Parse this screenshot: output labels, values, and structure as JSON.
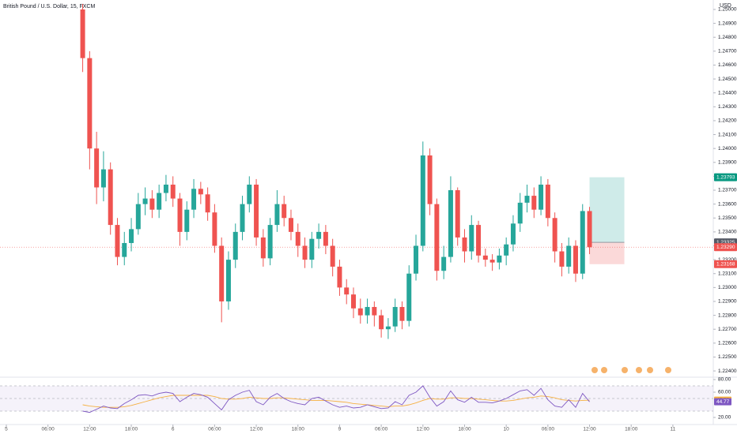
{
  "chart_data": {
    "type": "candlestick",
    "title": "British Pound / U.S. Dollar, 15, FXCM",
    "currency": "USD",
    "up_color": "#26a69a",
    "down_color": "#ef5350",
    "x": [
      11,
      12,
      13,
      14,
      15,
      16,
      17,
      18,
      19,
      20,
      21,
      22,
      23,
      24,
      25,
      26,
      27,
      28,
      29,
      30,
      31,
      32,
      33,
      34,
      35,
      36,
      37,
      38,
      39,
      40,
      41,
      42,
      43,
      44,
      45,
      46,
      47,
      48,
      49,
      50,
      51,
      52,
      53,
      54,
      55,
      56,
      57,
      58,
      59,
      60,
      61,
      62,
      63,
      64,
      65,
      66,
      67,
      68,
      69,
      70,
      71,
      72,
      73,
      74,
      75,
      76,
      77,
      78,
      79,
      80,
      81,
      82,
      83,
      84
    ],
    "open": [
      1.25,
      1.2465,
      1.24,
      1.2372,
      1.2385,
      1.2345,
      1.2322,
      1.2332,
      1.2342,
      1.236,
      1.2364,
      1.2356,
      1.2368,
      1.2374,
      1.2364,
      1.234,
      1.2356,
      1.2371,
      1.2367,
      1.2354,
      1.233,
      1.229,
      1.232,
      1.234,
      1.236,
      1.2374,
      1.2336,
      1.2321,
      1.2345,
      1.236,
      1.235,
      1.234,
      1.233,
      1.232,
      1.2335,
      1.234,
      1.233,
      1.2315,
      1.23,
      1.2295,
      1.2285,
      1.228,
      1.2286,
      1.228,
      1.227,
      1.2272,
      1.2286,
      1.2276,
      1.231,
      1.233,
      1.2395,
      1.236,
      1.2312,
      1.2322,
      1.237,
      1.2336,
      1.2326,
      1.2345,
      1.2323,
      1.232,
      1.2318,
      1.2323,
      1.2331,
      1.2346,
      1.2361,
      1.2366,
      1.2356,
      1.2374,
      1.235,
      1.2326,
      1.2315,
      1.233,
      1.231,
      1.2355
    ],
    "close": [
      1.2465,
      1.24,
      1.2372,
      1.2385,
      1.2345,
      1.2322,
      1.2332,
      1.2342,
      1.236,
      1.2364,
      1.2356,
      1.2368,
      1.2374,
      1.2364,
      1.234,
      1.2356,
      1.2371,
      1.2367,
      1.2354,
      1.233,
      1.229,
      1.232,
      1.234,
      1.236,
      1.2374,
      1.2336,
      1.2321,
      1.2345,
      1.236,
      1.235,
      1.234,
      1.233,
      1.232,
      1.2335,
      1.234,
      1.233,
      1.2315,
      1.23,
      1.2295,
      1.2285,
      1.228,
      1.2286,
      1.228,
      1.227,
      1.2272,
      1.2286,
      1.2276,
      1.231,
      1.233,
      1.2395,
      1.236,
      1.2312,
      1.2322,
      1.237,
      1.2336,
      1.2326,
      1.2345,
      1.2323,
      1.232,
      1.2318,
      1.2323,
      1.2331,
      1.2346,
      1.2361,
      1.2366,
      1.2356,
      1.2374,
      1.235,
      1.2326,
      1.2315,
      1.233,
      1.231,
      1.2355,
      1.2329
    ],
    "high": [
      1.2504,
      1.247,
      1.2412,
      1.2398,
      1.239,
      1.235,
      1.234,
      1.235,
      1.2368,
      1.2372,
      1.237,
      1.2374,
      1.2381,
      1.238,
      1.2368,
      1.2362,
      1.2378,
      1.2376,
      1.2372,
      1.236,
      1.2336,
      1.2326,
      1.2346,
      1.2366,
      1.238,
      1.2378,
      1.2342,
      1.235,
      1.237,
      1.2366,
      1.2356,
      1.2346,
      1.2336,
      1.234,
      1.2346,
      1.2345,
      1.2335,
      1.232,
      1.2306,
      1.23,
      1.2292,
      1.2292,
      1.229,
      1.2284,
      1.2278,
      1.2292,
      1.229,
      1.2316,
      1.2338,
      1.2405,
      1.24,
      1.2364,
      1.233,
      1.238,
      1.2372,
      1.2342,
      1.2352,
      1.2348,
      1.2328,
      1.2324,
      1.2328,
      1.2336,
      1.2352,
      1.2368,
      1.2374,
      1.2372,
      1.238,
      1.2378,
      1.2354,
      1.2332,
      1.2336,
      1.2334,
      1.236,
      1.2358
    ],
    "low": [
      1.2455,
      1.2385,
      1.236,
      1.2362,
      1.2338,
      1.2316,
      1.2316,
      1.2326,
      1.2338,
      1.2352,
      1.235,
      1.235,
      1.2362,
      1.2358,
      1.233,
      1.2334,
      1.235,
      1.236,
      1.2348,
      1.2325,
      1.2275,
      1.2284,
      1.2314,
      1.2334,
      1.2354,
      1.233,
      1.2315,
      1.2316,
      1.234,
      1.2344,
      1.2334,
      1.2322,
      1.2314,
      1.2314,
      1.2328,
      1.2324,
      1.2308,
      1.2294,
      1.2288,
      1.2278,
      1.2274,
      1.2274,
      1.2272,
      1.2264,
      1.2263,
      1.2268,
      1.227,
      1.2272,
      1.2305,
      1.2326,
      1.2352,
      1.2305,
      1.2306,
      1.2318,
      1.233,
      1.2318,
      1.232,
      1.2318,
      1.2315,
      1.2312,
      1.2313,
      1.2316,
      1.2326,
      1.234,
      1.2354,
      1.235,
      1.2352,
      1.2344,
      1.2318,
      1.2308,
      1.231,
      1.2304,
      1.2306,
      1.2324
    ],
    "xlim": [
      -0.91,
      101.82
    ],
    "xticks": [
      {
        "value": 0,
        "label": "5"
      },
      {
        "value": 6,
        "label": "06:00"
      },
      {
        "value": 12,
        "label": "12:00"
      },
      {
        "value": 18,
        "label": "18:00"
      },
      {
        "value": 24,
        "label": "6"
      },
      {
        "value": 30,
        "label": "06:00"
      },
      {
        "value": 36,
        "label": "12:00"
      },
      {
        "value": 42,
        "label": "18:00"
      },
      {
        "value": 48,
        "label": "9"
      },
      {
        "value": 54,
        "label": "06:00"
      },
      {
        "value": 60,
        "label": "12:00"
      },
      {
        "value": 66,
        "label": "18:00"
      },
      {
        "value": 72,
        "label": "10"
      },
      {
        "value": 78,
        "label": "06:00"
      },
      {
        "value": 84,
        "label": "12:00"
      },
      {
        "value": 90,
        "label": "18:00"
      },
      {
        "value": 96,
        "label": "11"
      }
    ],
    "ylim": [
      1.22355,
      1.25068
    ],
    "yticks": [
      {
        "value": 1.224,
        "label": "1.22400"
      },
      {
        "value": 1.225,
        "label": "1.22500"
      },
      {
        "value": 1.226,
        "label": "1.22600"
      },
      {
        "value": 1.227,
        "label": "1.22700"
      },
      {
        "value": 1.228,
        "label": "1.22800"
      },
      {
        "value": 1.229,
        "label": "1.22900"
      },
      {
        "value": 1.23,
        "label": "1.23000"
      },
      {
        "value": 1.231,
        "label": "1.23100"
      },
      {
        "value": 1.232,
        "label": "1.23200"
      },
      {
        "value": 1.233,
        "label": "1.23300"
      },
      {
        "value": 1.234,
        "label": "1.23400"
      },
      {
        "value": 1.235,
        "label": "1.23500"
      },
      {
        "value": 1.236,
        "label": "1.23600"
      },
      {
        "value": 1.237,
        "label": "1.23700"
      },
      {
        "value": 1.238,
        "label": "1.23800"
      },
      {
        "value": 1.239,
        "label": "1.23900"
      },
      {
        "value": 1.24,
        "label": "1.24000"
      },
      {
        "value": 1.241,
        "label": "1.24100"
      },
      {
        "value": 1.242,
        "label": "1.24200"
      },
      {
        "value": 1.243,
        "label": "1.24300"
      },
      {
        "value": 1.244,
        "label": "1.24400"
      },
      {
        "value": 1.245,
        "label": "1.24500"
      },
      {
        "value": 1.246,
        "label": "1.24600"
      },
      {
        "value": 1.247,
        "label": "1.24700"
      },
      {
        "value": 1.248,
        "label": "1.24800"
      },
      {
        "value": 1.249,
        "label": "1.24900"
      },
      {
        "value": 1.25,
        "label": "1.25000"
      }
    ],
    "last_price": {
      "value": 1.2329,
      "label": "1.23290"
    },
    "position": {
      "target": {
        "value": 1.23793,
        "label": "1.23793"
      },
      "entry": {
        "value": 1.23325,
        "label": "1.23325"
      },
      "stop": {
        "value": 1.23168,
        "label": "1.23168"
      }
    },
    "rsi": {
      "color": "#7e57c2",
      "ma_color": "#f5b041",
      "values": [
        30,
        28,
        33,
        38,
        35,
        34,
        42,
        48,
        55,
        56,
        54,
        58,
        60,
        58,
        45,
        52,
        58,
        56,
        52,
        42,
        32,
        48,
        55,
        60,
        63,
        45,
        40,
        52,
        58,
        50,
        45,
        42,
        40,
        50,
        52,
        46,
        40,
        36,
        38,
        35,
        36,
        40,
        37,
        34,
        35,
        45,
        40,
        55,
        60,
        70,
        52,
        38,
        45,
        62,
        48,
        44,
        52,
        44,
        44,
        43,
        46,
        50,
        56,
        62,
        64,
        55,
        66,
        48,
        38,
        36,
        48,
        36,
        58,
        44.77
      ],
      "ma": [
        40,
        38,
        37,
        36,
        36,
        36,
        37,
        39,
        42,
        45,
        48,
        51,
        53,
        55,
        55,
        55,
        55,
        55,
        55,
        53,
        50,
        49,
        49,
        50,
        52,
        51,
        50,
        50,
        51,
        51,
        50,
        49,
        48,
        47,
        47,
        47,
        46,
        45,
        44,
        42,
        41,
        40,
        39,
        38,
        37,
        38,
        38,
        40,
        43,
        47,
        50,
        49,
        49,
        51,
        51,
        50,
        50,
        49,
        48,
        47,
        46,
        46,
        47,
        49,
        51,
        52,
        54,
        53,
        51,
        48,
        47,
        46,
        47,
        47.28
      ],
      "ylim": [
        8.75,
        81.25
      ],
      "yticks": [
        {
          "value": 80,
          "label": "80.00"
        },
        {
          "value": 60,
          "label": "60.00"
        },
        {
          "value": 20,
          "label": "20.00"
        }
      ],
      "bands": [
        70,
        50,
        30
      ]
    }
  }
}
